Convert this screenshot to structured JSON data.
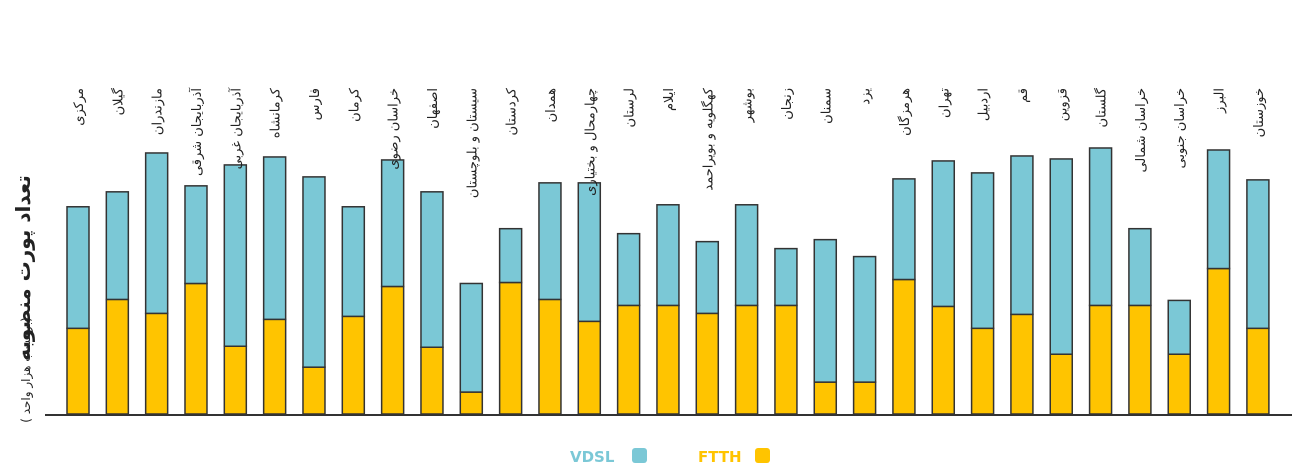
{
  "chart_data": {
    "type": "bar",
    "stacked": true,
    "ylabel": "تعداد پورت منصوبه",
    "ylabel_unit": "( برحسب هزار واحد)",
    "ylim": [
      0,
      270
    ],
    "grid": false,
    "legend_position": "bottom-center",
    "categories": [
      "مرکزی",
      "گیلان",
      "مازندران",
      "آذربایجان شرقی",
      "آذربایجان غربی",
      "کرمانشاه",
      "فارس",
      "کرمان",
      "خراسان رضوی",
      "اصفهان",
      "سیستان و بلوچستان",
      "کردستان",
      "همدان",
      "چهارمحال و بختیاری",
      "لرستان",
      "ایلام",
      "کهگلویه و بویراحمد",
      "بوشهر",
      "زنجان",
      "سمنان",
      "یزد",
      "هرمزگان",
      "تهران",
      "اردبیل",
      "قم",
      "قزوین",
      "گلستان",
      "خراسان شمالی",
      "خراسان جنوبی",
      "البرز",
      "خوزستان"
    ],
    "series": [
      {
        "name": "FTTH",
        "color": "#FFC400",
        "values": [
          86,
          115,
          101,
          131,
          68,
          95,
          47,
          98,
          128,
          67,
          22,
          132,
          115,
          93,
          109,
          109,
          101,
          109,
          109,
          32,
          32,
          135,
          108,
          86,
          100,
          60,
          109,
          109,
          60,
          146,
          86
        ]
      },
      {
        "name": "VDSL",
        "color": "#7BC8D6",
        "values": [
          122,
          108,
          161,
          98,
          182,
          163,
          191,
          110,
          127,
          156,
          109,
          54,
          117,
          139,
          72,
          101,
          72,
          101,
          57,
          143,
          126,
          101,
          146,
          156,
          159,
          196,
          158,
          77,
          54,
          119,
          149
        ]
      }
    ]
  }
}
